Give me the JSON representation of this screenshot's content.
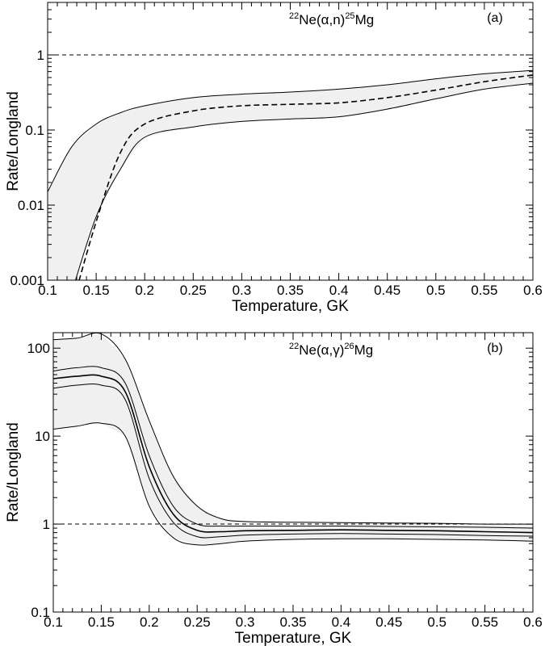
{
  "chart_data": [
    {
      "type": "line",
      "panel_label": "(a)",
      "title": {
        "pre_sup": "22",
        "main": "Ne(α,n)",
        "post_sup": "25",
        "post": "Mg"
      },
      "xlabel": "Temperature, GK",
      "ylabel": "Rate/Longland",
      "xlim": [
        0.1,
        0.6
      ],
      "ylim": [
        0.001,
        5
      ],
      "yscale": "log",
      "x_ticks": [
        0.1,
        0.15,
        0.2,
        0.25,
        0.3,
        0.35,
        0.4,
        0.45,
        0.5,
        0.55,
        0.6
      ],
      "x_tick_labels": [
        "0.1",
        "0.15",
        "0.2",
        "0.25",
        "0.3",
        "0.35",
        "0.4",
        "0.45",
        "0.5",
        "0.55",
        "0.6"
      ],
      "y_ticks": [
        0.001,
        0.01,
        0.1,
        1
      ],
      "y_tick_labels": [
        "0.001",
        "0.01",
        "0.1",
        "1"
      ],
      "grid": false,
      "reference_line": {
        "y": 1,
        "style": "dashed"
      },
      "x": [
        0.1,
        0.125,
        0.15,
        0.175,
        0.2,
        0.25,
        0.3,
        0.35,
        0.4,
        0.45,
        0.5,
        0.55,
        0.6
      ],
      "series": [
        {
          "role": "upper-band",
          "style": "solid",
          "values": [
            0.015,
            0.06,
            0.12,
            0.17,
            0.21,
            0.27,
            0.3,
            0.32,
            0.35,
            0.4,
            0.48,
            0.56,
            0.62
          ]
        },
        {
          "role": "central",
          "style": "dashed",
          "values": [
            null,
            0.00045,
            0.006,
            0.05,
            0.12,
            0.18,
            0.21,
            0.22,
            0.23,
            0.27,
            0.34,
            0.44,
            0.54
          ]
        },
        {
          "role": "lower-band",
          "style": "solid",
          "values": [
            null,
            0.0007,
            0.007,
            0.03,
            0.08,
            0.11,
            0.13,
            0.14,
            0.15,
            0.19,
            0.26,
            0.35,
            0.42
          ]
        }
      ],
      "band_fill": "#f0f0f0"
    },
    {
      "type": "line",
      "panel_label": "(b)",
      "title": {
        "pre_sup": "22",
        "main": "Ne(α,γ)",
        "post_sup": "26",
        "post": "Mg"
      },
      "xlabel": "Temperature, GK",
      "ylabel": "Rate/Longland",
      "xlim": [
        0.1,
        0.6
      ],
      "ylim": [
        0.1,
        150
      ],
      "yscale": "log",
      "x_ticks": [
        0.1,
        0.15,
        0.2,
        0.25,
        0.3,
        0.35,
        0.4,
        0.45,
        0.5,
        0.55,
        0.6
      ],
      "x_tick_labels": [
        "0.1",
        "0.15",
        "0.2",
        "0.25",
        "0.3",
        "0.35",
        "0.4",
        "0.45",
        "0.5",
        "0.55",
        "0.6"
      ],
      "y_ticks": [
        0.1,
        1,
        10,
        100
      ],
      "y_tick_labels": [
        "0.1",
        "1",
        "10",
        "100"
      ],
      "grid": false,
      "reference_line": {
        "y": 1,
        "style": "dashed"
      },
      "x": [
        0.1,
        0.125,
        0.15,
        0.175,
        0.2,
        0.225,
        0.25,
        0.275,
        0.3,
        0.35,
        0.4,
        0.45,
        0.5,
        0.55,
        0.6
      ],
      "series": [
        {
          "role": "upper-band",
          "style": "solid",
          "values": [
            125,
            130,
            145,
            75,
            15,
            3.5,
            1.6,
            1.15,
            1.07,
            1.05,
            1.04,
            1.03,
            1.02,
            1.0,
            1.0
          ]
        },
        {
          "role": "upper-inner",
          "style": "solid",
          "values": [
            55,
            60,
            60,
            40,
            6,
            1.6,
            1.0,
            0.95,
            0.95,
            0.95,
            0.95,
            0.94,
            0.93,
            0.92,
            0.9
          ]
        },
        {
          "role": "central",
          "style": "solid",
          "values": [
            45,
            48,
            48,
            32,
            4.5,
            1.3,
            0.85,
            0.82,
            0.84,
            0.85,
            0.86,
            0.85,
            0.84,
            0.82,
            0.8
          ]
        },
        {
          "role": "lower-inner",
          "style": "solid",
          "values": [
            35,
            38,
            38,
            26,
            3.3,
            1.05,
            0.72,
            0.72,
            0.75,
            0.77,
            0.78,
            0.77,
            0.76,
            0.74,
            0.73
          ]
        },
        {
          "role": "lower-band",
          "style": "solid",
          "values": [
            12,
            13,
            14,
            10,
            1.6,
            0.7,
            0.58,
            0.6,
            0.64,
            0.67,
            0.68,
            0.68,
            0.67,
            0.66,
            0.64
          ]
        }
      ],
      "band_fill": "#f0f0f0"
    }
  ]
}
